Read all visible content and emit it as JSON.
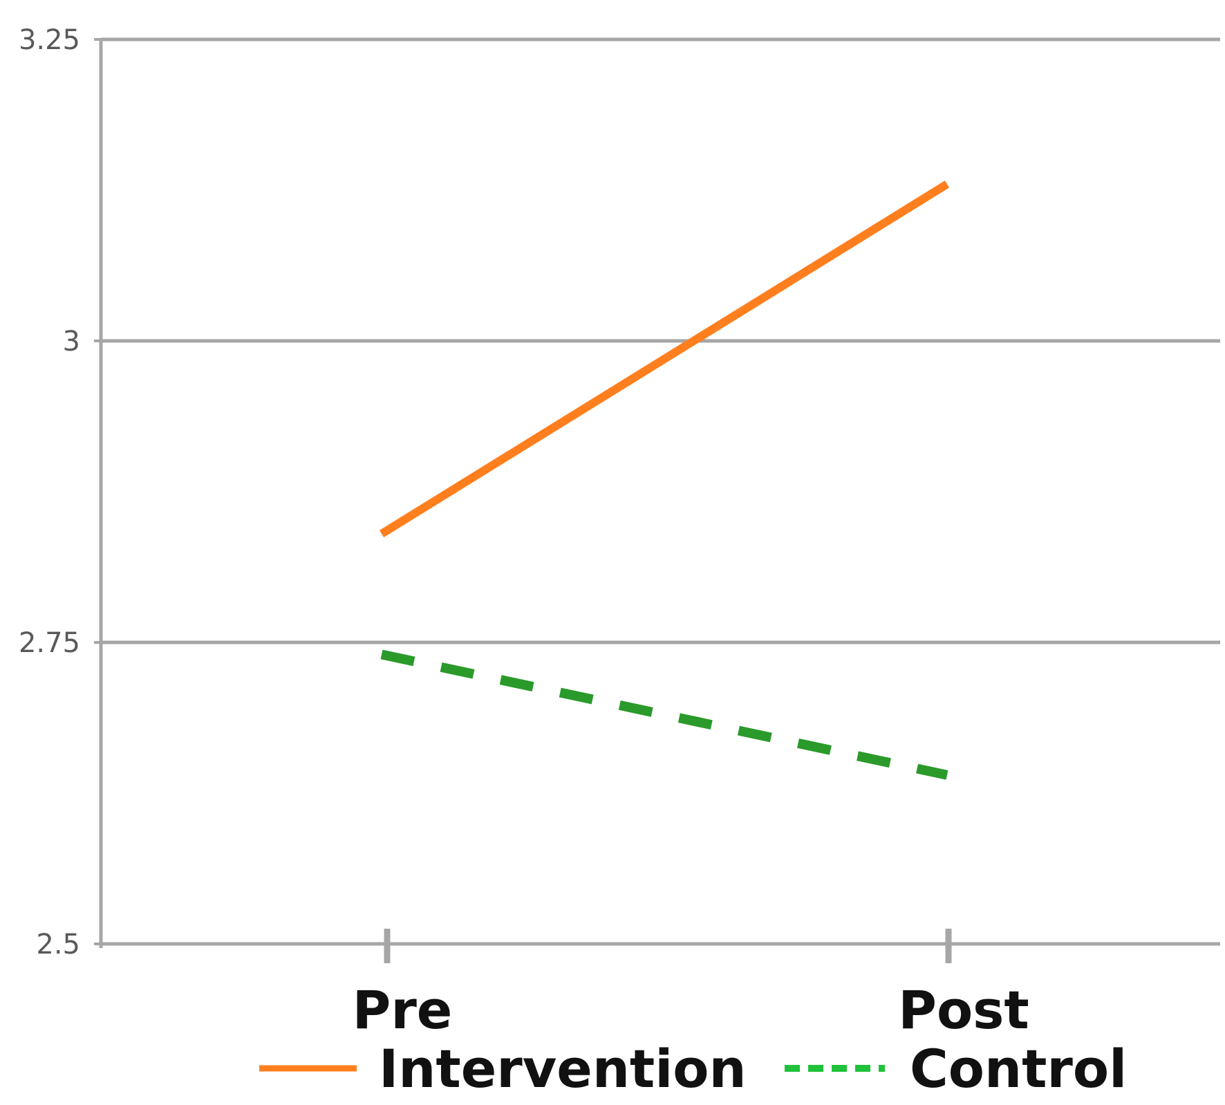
{
  "chart_data": {
    "type": "line",
    "categories": [
      "Pre",
      "Post"
    ],
    "y_ticks": [
      "2.5",
      "2.75",
      "3",
      "3.25"
    ],
    "ylim": [
      2.5,
      3.25
    ],
    "grid": true,
    "legend_position": "bottom",
    "series": [
      {
        "name": "Intervention",
        "values": [
          2.84,
          3.13
        ],
        "color": "#ff7f1e",
        "dash": "solid"
      },
      {
        "name": "Control",
        "values": [
          2.74,
          2.64
        ],
        "color": "#2a9a2a",
        "dash": "dashed",
        "legend_color": "#1fc23a"
      }
    ],
    "axis_color": "#a6a6a6"
  }
}
